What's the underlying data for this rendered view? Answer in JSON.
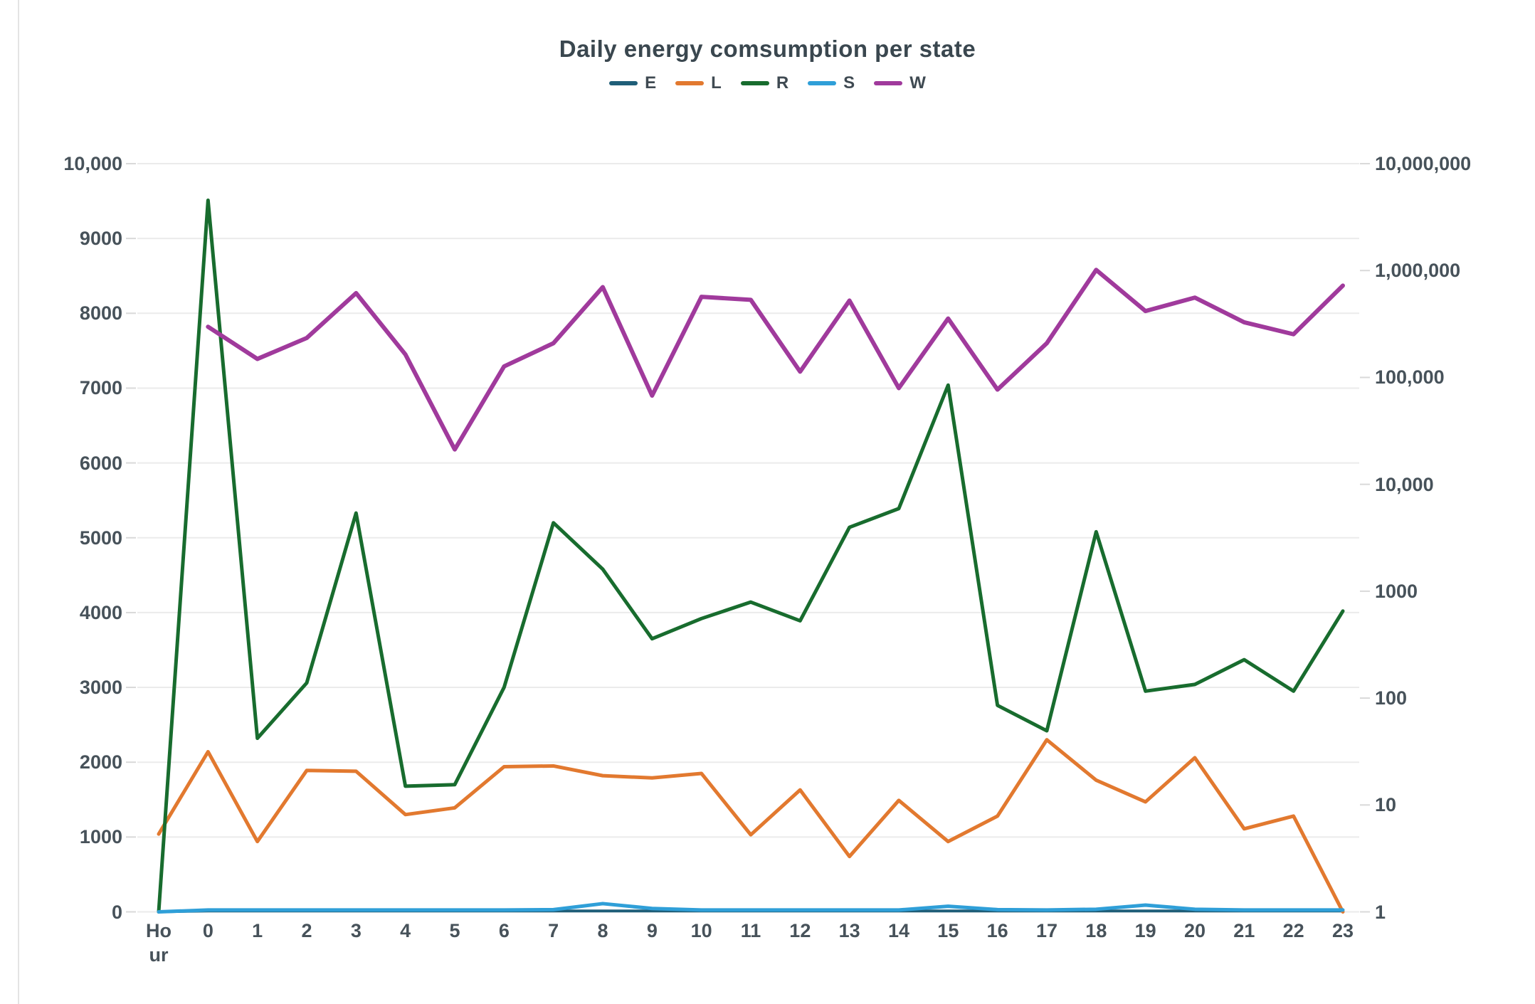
{
  "title": "Daily energy comsumption per state",
  "legend": [
    {
      "label": "E",
      "color": "#1f5e78"
    },
    {
      "label": "L",
      "color": "#e2792f"
    },
    {
      "label": "R",
      "color": "#186c2e"
    },
    {
      "label": "S",
      "color": "#2f9fd8"
    },
    {
      "label": "W",
      "color": "#a03a9c"
    }
  ],
  "chart_data": {
    "type": "line",
    "title": "Daily energy comsumption per state",
    "grid": true,
    "legend_position": "top",
    "categories": [
      "Hour",
      "0",
      "1",
      "2",
      "3",
      "4",
      "5",
      "6",
      "7",
      "8",
      "9",
      "10",
      "11",
      "12",
      "13",
      "14",
      "15",
      "16",
      "17",
      "18",
      "19",
      "20",
      "21",
      "22",
      "23"
    ],
    "x_tick_labels": [
      "Ho\nur",
      "0",
      "1",
      "2",
      "3",
      "4",
      "5",
      "6",
      "7",
      "8",
      "9",
      "10",
      "11",
      "12",
      "13",
      "14",
      "15",
      "16",
      "17",
      "18",
      "19",
      "20",
      "21",
      "22",
      "23"
    ],
    "left_axis": {
      "scale": "linear",
      "min": 0,
      "max": 10000,
      "tick_labels": [
        "0",
        "1000",
        "2000",
        "3000",
        "4000",
        "5000",
        "6000",
        "7000",
        "8000",
        "9000",
        "10,000"
      ],
      "tick_values": [
        0,
        1000,
        2000,
        3000,
        4000,
        5000,
        6000,
        7000,
        8000,
        9000,
        10000
      ]
    },
    "right_axis": {
      "scale": "log",
      "min": 1,
      "max": 10000000,
      "tick_labels": [
        "1",
        "10",
        "100",
        "1000",
        "10,000",
        "100,000",
        "1,000,000",
        "10,000,000"
      ],
      "tick_values": [
        1,
        10,
        100,
        1000,
        10000,
        100000,
        1000000,
        10000000
      ]
    },
    "series": [
      {
        "name": "E",
        "color": "#1f5e78",
        "width": 4,
        "values": [
          0,
          12,
          12,
          12,
          12,
          12,
          12,
          12,
          12,
          12,
          12,
          12,
          12,
          12,
          12,
          12,
          12,
          12,
          12,
          12,
          12,
          12,
          12,
          12,
          12
        ]
      },
      {
        "name": "L",
        "color": "#e2792f",
        "width": 5,
        "values": [
          1040,
          2140,
          940,
          1890,
          1880,
          1300,
          1390,
          1940,
          1950,
          1820,
          1790,
          1850,
          1030,
          1630,
          740,
          1490,
          940,
          1280,
          2300,
          1760,
          1470,
          2060,
          1110,
          1280,
          0
        ]
      },
      {
        "name": "R",
        "color": "#186c2e",
        "width": 5,
        "values": [
          0,
          9510,
          2320,
          3060,
          5330,
          1680,
          1700,
          3000,
          5200,
          4580,
          3650,
          3920,
          4140,
          3890,
          5140,
          5390,
          7040,
          2760,
          2420,
          5080,
          2950,
          3040,
          3370,
          2950,
          4020
        ]
      },
      {
        "name": "S",
        "color": "#2f9fd8",
        "width": 5,
        "values": [
          0,
          25,
          25,
          25,
          25,
          25,
          25,
          25,
          30,
          110,
          45,
          25,
          25,
          25,
          25,
          25,
          75,
          30,
          25,
          35,
          90,
          35,
          25,
          25,
          25
        ]
      },
      {
        "name": "W",
        "color": "#a03a9c",
        "width": 6,
        "values": [
          null,
          7820,
          7390,
          7670,
          8270,
          7450,
          6180,
          7290,
          7600,
          8350,
          6900,
          8220,
          8180,
          7220,
          8170,
          7000,
          7930,
          6980,
          7600,
          8580,
          8030,
          8210,
          7880,
          7720,
          8370
        ],
        "note": "W appears to be read against the right logarithmic axis; values given are left-axis equivalents of the plotted line."
      }
    ]
  }
}
